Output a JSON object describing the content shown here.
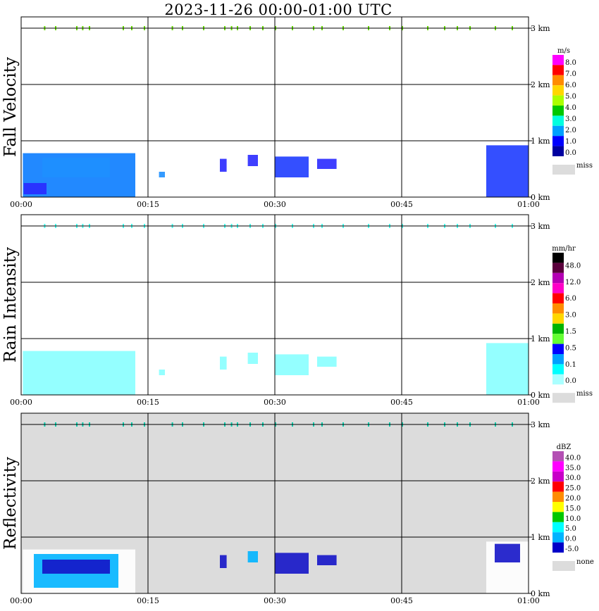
{
  "page": {
    "title": "2023-11-26   00:00-01:00 UTC"
  },
  "time_ticks": [
    "00:00",
    "00:15",
    "00:30",
    "00:45",
    "01:00"
  ],
  "height_ticks": [
    "0 km",
    "1 km",
    "2 km",
    "3 km"
  ],
  "colors": {
    "no_data_background": "#dcdcdc",
    "grid": "#000000"
  },
  "chart_data": [
    {
      "type": "heatmap",
      "ylabel": "Fall Velocity",
      "x_range_minutes": [
        0,
        60
      ],
      "y_range_km": [
        0,
        3.2
      ],
      "gray_background": false,
      "colorbar": {
        "unit": "m/s",
        "labels": [
          "8.0",
          "7.0",
          "6.0",
          "5.0",
          "4.0",
          "3.0",
          "2.0",
          "1.0",
          "0.0"
        ],
        "colors": [
          "#ff00ff",
          "#ff0000",
          "#ff8c00",
          "#ffd700",
          "#aaff00",
          "#00c800",
          "#00ffe0",
          "#00a0ff",
          "#0000ff",
          "#0000a0"
        ],
        "miss_label": "miss",
        "miss_color": "#dcdcdc"
      },
      "echo_regions": [
        {
          "t_start": 0.2,
          "t_end": 13.5,
          "h_low": 0.0,
          "h_high": 0.78,
          "color": "#0a7cff"
        },
        {
          "t_start": 2.5,
          "t_end": 10.5,
          "h_low": 0.35,
          "h_high": 0.7,
          "color": "#1e90ff"
        },
        {
          "t_start": 0.3,
          "t_end": 3.0,
          "h_low": 0.05,
          "h_high": 0.25,
          "color": "#2a2aff"
        },
        {
          "t_start": 16.3,
          "t_end": 17.0,
          "h_low": 0.35,
          "h_high": 0.45,
          "color": "#1e90ff"
        },
        {
          "t_start": 23.5,
          "t_end": 24.3,
          "h_low": 0.45,
          "h_high": 0.68,
          "color": "#2a2aff"
        },
        {
          "t_start": 26.8,
          "t_end": 28.0,
          "h_low": 0.55,
          "h_high": 0.75,
          "color": "#2a2aff"
        },
        {
          "t_start": 30.0,
          "t_end": 34.0,
          "h_low": 0.35,
          "h_high": 0.72,
          "color": "#1e3cff"
        },
        {
          "t_start": 35.0,
          "t_end": 37.3,
          "h_low": 0.5,
          "h_high": 0.68,
          "color": "#2a2aff"
        },
        {
          "t_start": 55.0,
          "t_end": 60.0,
          "h_low": 0.0,
          "h_high": 0.92,
          "color": "#1e3cff"
        }
      ],
      "thin_layer": {
        "h": 3.0,
        "tmin_list": [
          2.7,
          4.0,
          6.5,
          7.2,
          8.0,
          12.0,
          13.0,
          14.5,
          17.8,
          19.0,
          21.5,
          24.0,
          24.8,
          25.5,
          27.0,
          28.5,
          30.0,
          32.0,
          34.5,
          35.5,
          38.0,
          41.0,
          43.5,
          45.0,
          48.0,
          50.0,
          51.5,
          53.0,
          56.0,
          58.0
        ],
        "color": "#66dd00"
      }
    },
    {
      "type": "heatmap",
      "ylabel": "Rain Intensity",
      "x_range_minutes": [
        0,
        60
      ],
      "y_range_km": [
        0,
        3.2
      ],
      "gray_background": false,
      "colorbar": {
        "unit": "mm/hr",
        "labels": [
          "48.0",
          "12.0",
          "6.0",
          "3.0",
          "1.5",
          "0.5",
          "0.1",
          "0.0"
        ],
        "colors": [
          "#000000",
          "#5a003c",
          "#b400b4",
          "#ff00c8",
          "#ff0000",
          "#ff8c00",
          "#ffd700",
          "#00b400",
          "#64ff32",
          "#0000ff",
          "#00a0ff",
          "#00ffff",
          "#aaffff"
        ],
        "miss_label": "miss",
        "miss_color": "#dcdcdc"
      },
      "echo_regions": [
        {
          "t_start": 0.2,
          "t_end": 13.5,
          "h_low": 0.0,
          "h_high": 0.78,
          "color": "#88ffff"
        },
        {
          "t_start": 16.3,
          "t_end": 17.0,
          "h_low": 0.35,
          "h_high": 0.45,
          "color": "#88ffff"
        },
        {
          "t_start": 23.5,
          "t_end": 24.3,
          "h_low": 0.45,
          "h_high": 0.68,
          "color": "#88ffff"
        },
        {
          "t_start": 26.8,
          "t_end": 28.0,
          "h_low": 0.55,
          "h_high": 0.75,
          "color": "#88ffff"
        },
        {
          "t_start": 30.0,
          "t_end": 34.0,
          "h_low": 0.35,
          "h_high": 0.72,
          "color": "#88ffff"
        },
        {
          "t_start": 35.0,
          "t_end": 37.3,
          "h_low": 0.5,
          "h_high": 0.68,
          "color": "#88ffff"
        },
        {
          "t_start": 55.0,
          "t_end": 60.0,
          "h_low": 0.0,
          "h_high": 0.92,
          "color": "#88ffff"
        }
      ],
      "thin_layer": {
        "h": 3.0,
        "tmin_list": [
          2.7,
          4.0,
          6.5,
          7.2,
          8.0,
          12.0,
          13.0,
          14.5,
          17.8,
          19.0,
          21.5,
          24.0,
          24.8,
          25.5,
          27.0,
          28.5,
          30.0,
          32.0,
          34.5,
          35.5,
          38.0,
          41.0,
          43.5,
          45.0,
          48.0,
          50.0,
          51.5,
          53.0,
          56.0,
          58.0
        ],
        "color": "#44ffee"
      }
    },
    {
      "type": "heatmap",
      "ylabel": "Reflectivity",
      "x_range_minutes": [
        0,
        60
      ],
      "y_range_km": [
        0,
        3.2
      ],
      "gray_background": true,
      "colorbar": {
        "unit": "dBZ",
        "labels": [
          "40.0",
          "35.0",
          "30.0",
          "25.0",
          "20.0",
          "15.0",
          "10.0",
          "5.0",
          "0.0",
          "-5.0"
        ],
        "colors": [
          "#b450b4",
          "#ff00ff",
          "#c800c8",
          "#ff0000",
          "#ff8c00",
          "#ffff00",
          "#00c800",
          "#00ffff",
          "#00b4ff",
          "#0000c8"
        ],
        "miss_label": "none",
        "miss_color": "#dcdcdc"
      },
      "echo_regions": [
        {
          "t_start": 0.2,
          "t_end": 13.5,
          "h_low": 0.0,
          "h_high": 0.78,
          "color": "#ffffff"
        },
        {
          "t_start": 1.5,
          "t_end": 11.5,
          "h_low": 0.1,
          "h_high": 0.7,
          "color": "#00b4ff"
        },
        {
          "t_start": 2.5,
          "t_end": 10.5,
          "h_low": 0.35,
          "h_high": 0.6,
          "color": "#1414c8"
        },
        {
          "t_start": 23.5,
          "t_end": 24.3,
          "h_low": 0.45,
          "h_high": 0.68,
          "color": "#1414c8"
        },
        {
          "t_start": 26.8,
          "t_end": 28.0,
          "h_low": 0.55,
          "h_high": 0.75,
          "color": "#00b4ff"
        },
        {
          "t_start": 30.0,
          "t_end": 34.0,
          "h_low": 0.35,
          "h_high": 0.72,
          "color": "#1414c8"
        },
        {
          "t_start": 35.0,
          "t_end": 37.3,
          "h_low": 0.5,
          "h_high": 0.68,
          "color": "#1414c8"
        },
        {
          "t_start": 55.0,
          "t_end": 60.0,
          "h_low": 0.0,
          "h_high": 0.92,
          "color": "#ffffff"
        },
        {
          "t_start": 56.0,
          "t_end": 59.0,
          "h_low": 0.55,
          "h_high": 0.88,
          "color": "#1414c8"
        }
      ],
      "thin_layer": {
        "h": 3.0,
        "tmin_list": [
          2.7,
          4.0,
          6.5,
          7.2,
          8.0,
          12.0,
          13.0,
          14.5,
          17.8,
          19.0,
          21.5,
          24.0,
          24.8,
          25.5,
          27.0,
          28.5,
          30.0,
          32.0,
          34.5,
          35.5,
          38.0,
          41.0,
          43.5,
          45.0,
          48.0,
          50.0,
          51.5,
          53.0,
          56.0,
          58.0
        ],
        "color": "#00ccaa"
      }
    }
  ]
}
